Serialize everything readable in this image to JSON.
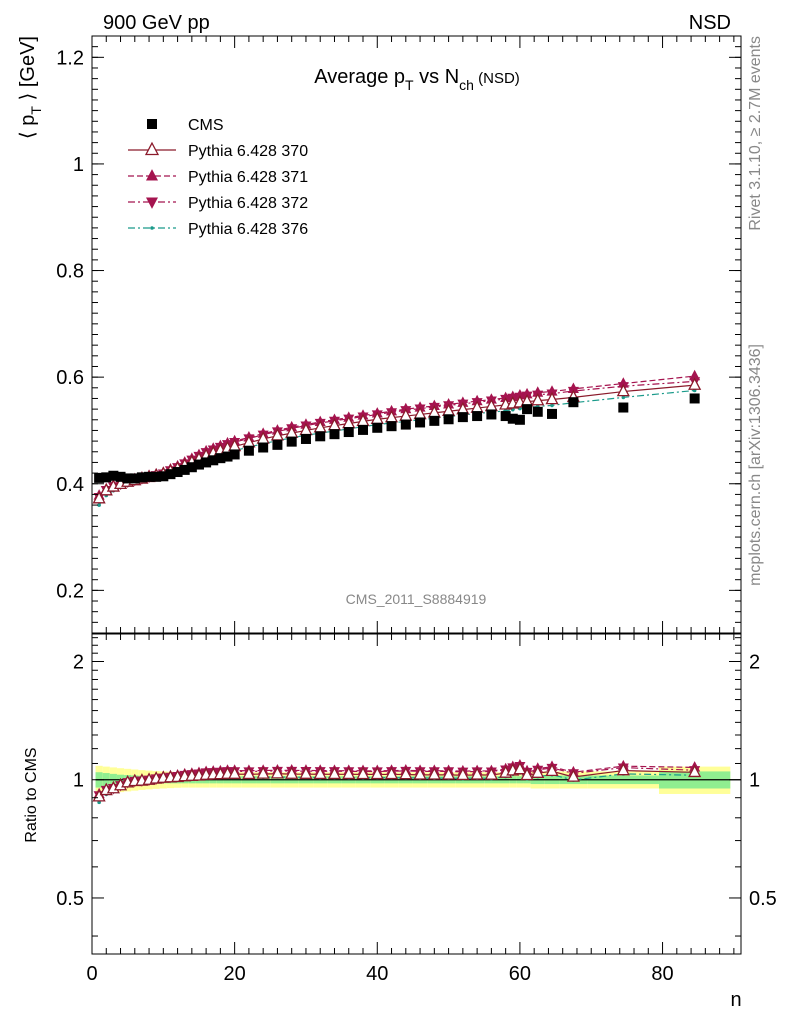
{
  "header": {
    "left": "900 GeV pp",
    "right": "NSD"
  },
  "side_labels": {
    "rivet": "Rivet 3.1.10, ≥ 2.7M events",
    "mcplots": "mcplots.cern.ch [arXiv:1306.3436]"
  },
  "title": {
    "main": "Average p",
    "sub_t": "T",
    "mid": " vs N",
    "sub_ch": "ch",
    "suffix": " (NSD)"
  },
  "analysis_label": "CMS_2011_S8884919",
  "colors": {
    "data": "#000000",
    "p370": "#8b1a2b",
    "p371": "#a5144f",
    "p372": "#a5144f",
    "p376": "#1a9a8a",
    "band_green": "#90ee90",
    "band_yellow": "#ffff99"
  },
  "chart_data": [
    {
      "type": "scatter",
      "ylabel_parts": [
        "⟨ p",
        "T",
        " ⟩ [GeV]"
      ],
      "xlim": [
        0,
        91
      ],
      "ylim": [
        0.12,
        1.24
      ],
      "yticks": [
        0.2,
        0.4,
        0.6,
        0.8,
        1.0,
        1.2
      ],
      "ytick_labels": [
        "0.2",
        "0.4",
        "0.6",
        "0.8",
        "1",
        "1.2"
      ],
      "legend_placement": "top-left",
      "series": [
        {
          "name": "CMS",
          "marker": "square",
          "x": [
            1,
            2,
            3,
            4,
            5,
            6,
            7,
            8,
            9,
            10,
            11,
            12,
            13,
            14,
            15,
            16,
            17,
            18,
            19,
            20,
            22,
            24,
            26,
            28,
            30,
            32,
            34,
            36,
            38,
            40,
            42,
            44,
            46,
            48,
            50,
            52,
            54,
            56,
            58,
            59,
            60,
            61,
            62.5,
            64.5,
            67.5,
            74.5,
            84.5
          ],
          "values": [
            0.411,
            0.412,
            0.415,
            0.413,
            0.41,
            0.41,
            0.412,
            0.413,
            0.413,
            0.414,
            0.418,
            0.422,
            0.426,
            0.431,
            0.436,
            0.44,
            0.444,
            0.448,
            0.451,
            0.455,
            0.462,
            0.468,
            0.473,
            0.479,
            0.484,
            0.489,
            0.493,
            0.497,
            0.501,
            0.505,
            0.508,
            0.511,
            0.515,
            0.518,
            0.521,
            0.525,
            0.527,
            0.53,
            0.527,
            0.522,
            0.52,
            0.54,
            0.535,
            0.531,
            0.553,
            0.543,
            0.56
          ]
        },
        {
          "name": "Pythia 6.428 370",
          "marker": "triangle-up-open",
          "line": "solid",
          "x": [
            1,
            2,
            3,
            4,
            5,
            6,
            7,
            8,
            9,
            10,
            11,
            12,
            13,
            14,
            15,
            16,
            17,
            18,
            19,
            20,
            22,
            24,
            26,
            28,
            30,
            32,
            34,
            36,
            38,
            40,
            42,
            44,
            46,
            48,
            50,
            52,
            54,
            56,
            58,
            59,
            60,
            61,
            62.5,
            64.5,
            67.5,
            74.5,
            84.5
          ],
          "values": [
            0.372,
            0.387,
            0.394,
            0.399,
            0.403,
            0.406,
            0.409,
            0.412,
            0.415,
            0.418,
            0.423,
            0.428,
            0.434,
            0.44,
            0.446,
            0.452,
            0.457,
            0.462,
            0.466,
            0.47,
            0.477,
            0.484,
            0.49,
            0.495,
            0.5,
            0.505,
            0.509,
            0.513,
            0.517,
            0.521,
            0.524,
            0.527,
            0.53,
            0.533,
            0.536,
            0.539,
            0.542,
            0.545,
            0.548,
            0.55,
            0.552,
            0.554,
            0.556,
            0.558,
            0.562,
            0.573,
            0.585
          ]
        },
        {
          "name": "Pythia 6.428 371",
          "marker": "triangle-up",
          "line": "dashed",
          "x": [
            1,
            2,
            3,
            4,
            5,
            6,
            7,
            8,
            9,
            10,
            11,
            12,
            13,
            14,
            15,
            16,
            17,
            18,
            19,
            20,
            22,
            24,
            26,
            28,
            30,
            32,
            34,
            36,
            38,
            40,
            42,
            44,
            46,
            48,
            50,
            52,
            54,
            56,
            58,
            59,
            60,
            61,
            62.5,
            64.5,
            67.5,
            74.5,
            84.5
          ],
          "values": [
            0.378,
            0.39,
            0.397,
            0.402,
            0.406,
            0.409,
            0.412,
            0.415,
            0.418,
            0.421,
            0.427,
            0.433,
            0.44,
            0.447,
            0.454,
            0.461,
            0.466,
            0.471,
            0.476,
            0.48,
            0.487,
            0.494,
            0.5,
            0.506,
            0.511,
            0.516,
            0.52,
            0.524,
            0.528,
            0.532,
            0.536,
            0.54,
            0.543,
            0.546,
            0.549,
            0.552,
            0.555,
            0.558,
            0.561,
            0.563,
            0.566,
            0.568,
            0.571,
            0.573,
            0.578,
            0.588,
            0.602
          ]
        },
        {
          "name": "Pythia 6.428 372",
          "marker": "triangle-down",
          "line": "dash-dot",
          "x": [
            1,
            2,
            3,
            4,
            5,
            6,
            7,
            8,
            9,
            10,
            11,
            12,
            13,
            14,
            15,
            16,
            17,
            18,
            19,
            20,
            22,
            24,
            26,
            28,
            30,
            32,
            34,
            36,
            38,
            40,
            42,
            44,
            46,
            48,
            50,
            52,
            54,
            56,
            58,
            59,
            60,
            61,
            62.5,
            64.5,
            67.5,
            74.5,
            84.5
          ],
          "values": [
            0.375,
            0.388,
            0.395,
            0.4,
            0.404,
            0.407,
            0.41,
            0.413,
            0.416,
            0.419,
            0.425,
            0.431,
            0.438,
            0.445,
            0.452,
            0.459,
            0.464,
            0.469,
            0.474,
            0.478,
            0.485,
            0.492,
            0.498,
            0.504,
            0.509,
            0.514,
            0.518,
            0.522,
            0.526,
            0.53,
            0.534,
            0.538,
            0.541,
            0.544,
            0.547,
            0.55,
            0.553,
            0.556,
            0.559,
            0.561,
            0.563,
            0.565,
            0.567,
            0.569,
            0.574,
            0.583,
            0.592
          ]
        },
        {
          "name": "Pythia 6.428 376",
          "marker": "dot",
          "line": "dash-dot",
          "x": [
            1,
            2,
            3,
            4,
            5,
            6,
            7,
            8,
            9,
            10,
            11,
            12,
            13,
            14,
            15,
            16,
            17,
            18,
            19,
            20,
            22,
            24,
            26,
            28,
            30,
            32,
            34,
            36,
            38,
            40,
            42,
            44,
            46,
            48,
            50,
            52,
            54,
            56,
            58,
            59,
            60,
            61,
            62.5,
            64.5,
            67.5,
            74.5,
            84.5
          ],
          "values": [
            0.36,
            0.378,
            0.387,
            0.393,
            0.397,
            0.401,
            0.404,
            0.407,
            0.41,
            0.413,
            0.418,
            0.423,
            0.428,
            0.434,
            0.44,
            0.445,
            0.45,
            0.454,
            0.458,
            0.462,
            0.469,
            0.475,
            0.481,
            0.486,
            0.491,
            0.495,
            0.499,
            0.503,
            0.507,
            0.511,
            0.514,
            0.517,
            0.52,
            0.523,
            0.526,
            0.529,
            0.532,
            0.534,
            0.537,
            0.539,
            0.541,
            0.543,
            0.545,
            0.547,
            0.552,
            0.562,
            0.575
          ]
        }
      ]
    },
    {
      "type": "scatter",
      "ylabel": "Ratio to CMS",
      "xlabel": "n",
      "xlim": [
        0,
        91
      ],
      "ylim": [
        0.36,
        2.35
      ],
      "yscale": "log",
      "yticks": [
        0.5,
        1,
        2
      ],
      "ytick_labels": [
        "0.5",
        "1",
        "2"
      ],
      "xticks": [
        0,
        20,
        40,
        60,
        80
      ],
      "xtick_labels": [
        "0",
        "20",
        "40",
        "60",
        "80"
      ],
      "band": {
        "x_edges": [
          0.5,
          1.5,
          2.5,
          3.5,
          4.5,
          5.5,
          6.5,
          7.5,
          8.5,
          9.5,
          10.5,
          11.5,
          12.5,
          13.5,
          14.5,
          15.5,
          16.5,
          17.5,
          18.5,
          19.5,
          21,
          23,
          25,
          27,
          29,
          31,
          33,
          35,
          37,
          39,
          41,
          43,
          45,
          47,
          49,
          51,
          53,
          55,
          57,
          58.5,
          59.5,
          60.5,
          61.5,
          63.5,
          65.5,
          69.5,
          79.5,
          89.5
        ],
        "green_half": [
          0.045,
          0.04,
          0.035,
          0.03,
          0.028,
          0.026,
          0.024,
          0.022,
          0.022,
          0.021,
          0.021,
          0.021,
          0.021,
          0.021,
          0.021,
          0.021,
          0.021,
          0.021,
          0.021,
          0.021,
          0.021,
          0.021,
          0.021,
          0.021,
          0.021,
          0.021,
          0.021,
          0.021,
          0.021,
          0.021,
          0.021,
          0.021,
          0.021,
          0.021,
          0.021,
          0.021,
          0.021,
          0.021,
          0.021,
          0.021,
          0.021,
          0.021,
          0.025,
          0.025,
          0.025,
          0.025,
          0.05
        ],
        "yellow_half": [
          0.085,
          0.08,
          0.075,
          0.07,
          0.066,
          0.062,
          0.058,
          0.055,
          0.052,
          0.05,
          0.048,
          0.046,
          0.045,
          0.045,
          0.045,
          0.045,
          0.045,
          0.045,
          0.045,
          0.045,
          0.045,
          0.045,
          0.045,
          0.045,
          0.045,
          0.045,
          0.045,
          0.045,
          0.045,
          0.045,
          0.045,
          0.045,
          0.045,
          0.045,
          0.045,
          0.045,
          0.045,
          0.045,
          0.045,
          0.045,
          0.045,
          0.045,
          0.05,
          0.05,
          0.05,
          0.05,
          0.08
        ]
      }
    }
  ]
}
